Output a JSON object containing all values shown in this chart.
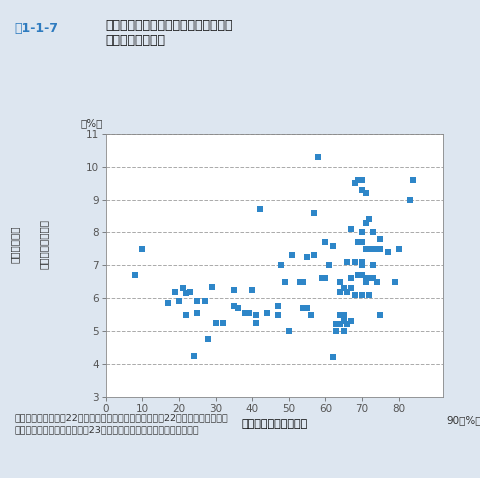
{
  "title_fig": "図1-1-7",
  "title_main": "自動車分担率と重い介護を必要とする",
  "title_sub": "人々の割合の関係",
  "xlabel": "自動車分担率（平日）",
  "ylabel_line1": "重介護認定率",
  "ylabel_line2": "（要介護３以上）",
  "ylabel_unit": "（%）",
  "source_line1": "資料：総務省「平成22年国勢調査」、国土交通省「平成22年全国都市交通特性",
  "source_line2": "　調査」、厚生労働省「平成23年度介護保険事業状況報告」より作成",
  "xlim": [
    0,
    92
  ],
  "ylim": [
    3,
    11
  ],
  "xticks": [
    0,
    10,
    20,
    30,
    40,
    50,
    60,
    70,
    80
  ],
  "yticks": [
    3,
    4,
    5,
    6,
    7,
    8,
    9,
    10,
    11
  ],
  "marker_color": "#2e86c8",
  "fig_bg_color": "#dde6f0",
  "plot_bg_color": "#ffffff",
  "scatter_data": [
    [
      8,
      6.7
    ],
    [
      10,
      7.5
    ],
    [
      17,
      5.85
    ],
    [
      19,
      6.2
    ],
    [
      20,
      5.9
    ],
    [
      21,
      6.3
    ],
    [
      22,
      6.15
    ],
    [
      22,
      5.5
    ],
    [
      23,
      6.2
    ],
    [
      24,
      4.25
    ],
    [
      25,
      5.55
    ],
    [
      25,
      5.9
    ],
    [
      27,
      5.9
    ],
    [
      28,
      4.75
    ],
    [
      29,
      6.35
    ],
    [
      30,
      5.25
    ],
    [
      32,
      5.25
    ],
    [
      35,
      6.25
    ],
    [
      35,
      5.75
    ],
    [
      36,
      5.7
    ],
    [
      38,
      5.55
    ],
    [
      39,
      5.55
    ],
    [
      40,
      6.25
    ],
    [
      41,
      5.5
    ],
    [
      41,
      5.25
    ],
    [
      42,
      8.7
    ],
    [
      44,
      5.55
    ],
    [
      47,
      5.5
    ],
    [
      47,
      5.75
    ],
    [
      48,
      7.0
    ],
    [
      49,
      6.5
    ],
    [
      50,
      5.0
    ],
    [
      51,
      7.3
    ],
    [
      53,
      6.5
    ],
    [
      54,
      6.5
    ],
    [
      54,
      5.7
    ],
    [
      55,
      5.7
    ],
    [
      55,
      7.25
    ],
    [
      56,
      5.5
    ],
    [
      57,
      7.3
    ],
    [
      57,
      8.6
    ],
    [
      58,
      10.3
    ],
    [
      59,
      6.6
    ],
    [
      60,
      6.6
    ],
    [
      60,
      7.7
    ],
    [
      61,
      7.0
    ],
    [
      62,
      7.6
    ],
    [
      62,
      4.2
    ],
    [
      63,
      5.0
    ],
    [
      63,
      5.2
    ],
    [
      64,
      5.2
    ],
    [
      64,
      5.5
    ],
    [
      64,
      6.2
    ],
    [
      64,
      6.5
    ],
    [
      65,
      5.0
    ],
    [
      65,
      5.3
    ],
    [
      65,
      5.5
    ],
    [
      65,
      6.3
    ],
    [
      66,
      5.2
    ],
    [
      66,
      6.2
    ],
    [
      66,
      7.1
    ],
    [
      67,
      5.3
    ],
    [
      67,
      6.3
    ],
    [
      67,
      6.6
    ],
    [
      67,
      8.1
    ],
    [
      68,
      6.1
    ],
    [
      68,
      7.1
    ],
    [
      68,
      9.5
    ],
    [
      69,
      6.7
    ],
    [
      69,
      7.7
    ],
    [
      69,
      9.6
    ],
    [
      70,
      6.1
    ],
    [
      70,
      6.7
    ],
    [
      70,
      7.0
    ],
    [
      70,
      7.1
    ],
    [
      70,
      7.7
    ],
    [
      70,
      8.0
    ],
    [
      70,
      9.3
    ],
    [
      70,
      9.6
    ],
    [
      71,
      6.5
    ],
    [
      71,
      6.6
    ],
    [
      71,
      7.5
    ],
    [
      71,
      8.3
    ],
    [
      71,
      9.2
    ],
    [
      72,
      6.1
    ],
    [
      72,
      6.6
    ],
    [
      72,
      7.5
    ],
    [
      72,
      8.4
    ],
    [
      73,
      6.6
    ],
    [
      73,
      7.0
    ],
    [
      73,
      7.5
    ],
    [
      73,
      8.0
    ],
    [
      74,
      6.5
    ],
    [
      74,
      7.5
    ],
    [
      75,
      5.5
    ],
    [
      75,
      7.5
    ],
    [
      75,
      7.8
    ],
    [
      77,
      7.4
    ],
    [
      79,
      6.5
    ],
    [
      80,
      7.5
    ],
    [
      83,
      9.0
    ],
    [
      84,
      9.6
    ]
  ]
}
